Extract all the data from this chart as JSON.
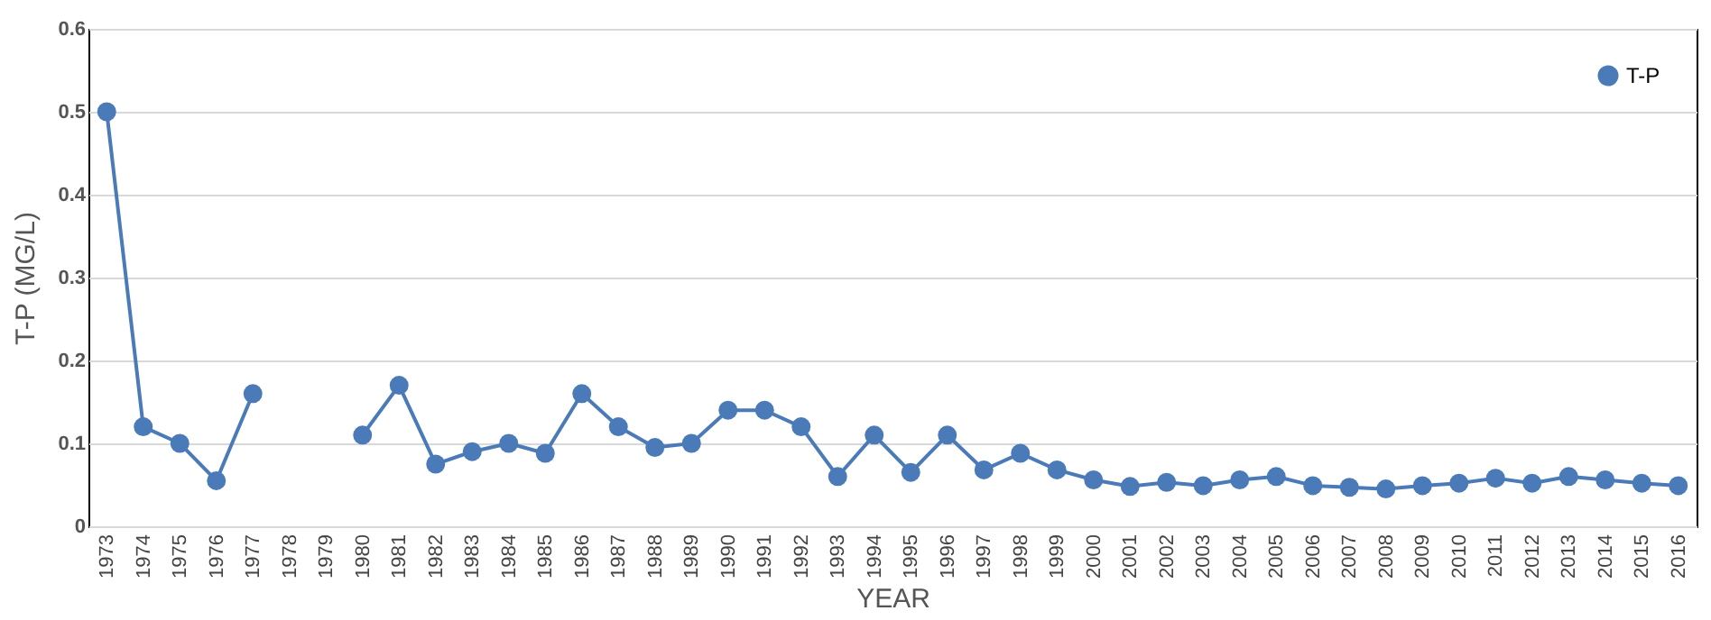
{
  "chart_data": {
    "type": "line",
    "xlabel": "YEAR",
    "ylabel": "T-P (MG/L)",
    "categories": [
      "1973",
      "1974",
      "1975",
      "1976",
      "1977",
      "1978",
      "1979",
      "1980",
      "1981",
      "1982",
      "1983",
      "1984",
      "1985",
      "1986",
      "1987",
      "1988",
      "1989",
      "1990",
      "1991",
      "1992",
      "1993",
      "1994",
      "1995",
      "1996",
      "1997",
      "1998",
      "1999",
      "2000",
      "2001",
      "2002",
      "2003",
      "2004",
      "2005",
      "2006",
      "2007",
      "2008",
      "2009",
      "2010",
      "2011",
      "2012",
      "2013",
      "2014",
      "2015",
      "2016"
    ],
    "series": [
      {
        "name": "T-P",
        "color": "#4a7ab8",
        "values": [
          0.5,
          0.12,
          0.1,
          0.055,
          0.16,
          null,
          null,
          0.11,
          0.17,
          0.075,
          0.09,
          0.1,
          0.088,
          0.16,
          0.12,
          0.095,
          0.1,
          0.14,
          0.14,
          0.12,
          0.06,
          0.11,
          0.065,
          0.11,
          0.068,
          0.088,
          0.068,
          0.056,
          0.048,
          0.053,
          0.049,
          0.056,
          0.06,
          0.049,
          0.047,
          0.045,
          0.049,
          0.052,
          0.058,
          0.052,
          0.06,
          0.056,
          0.052,
          0.049
        ]
      }
    ],
    "ylim": [
      0,
      0.6
    ],
    "yticks": [
      {
        "value": 0,
        "label": "0"
      },
      0.1,
      0.2,
      0.3,
      0.4,
      0.5,
      0.6
    ],
    "grid": "y",
    "legend": "top right",
    "marker": "circle"
  }
}
